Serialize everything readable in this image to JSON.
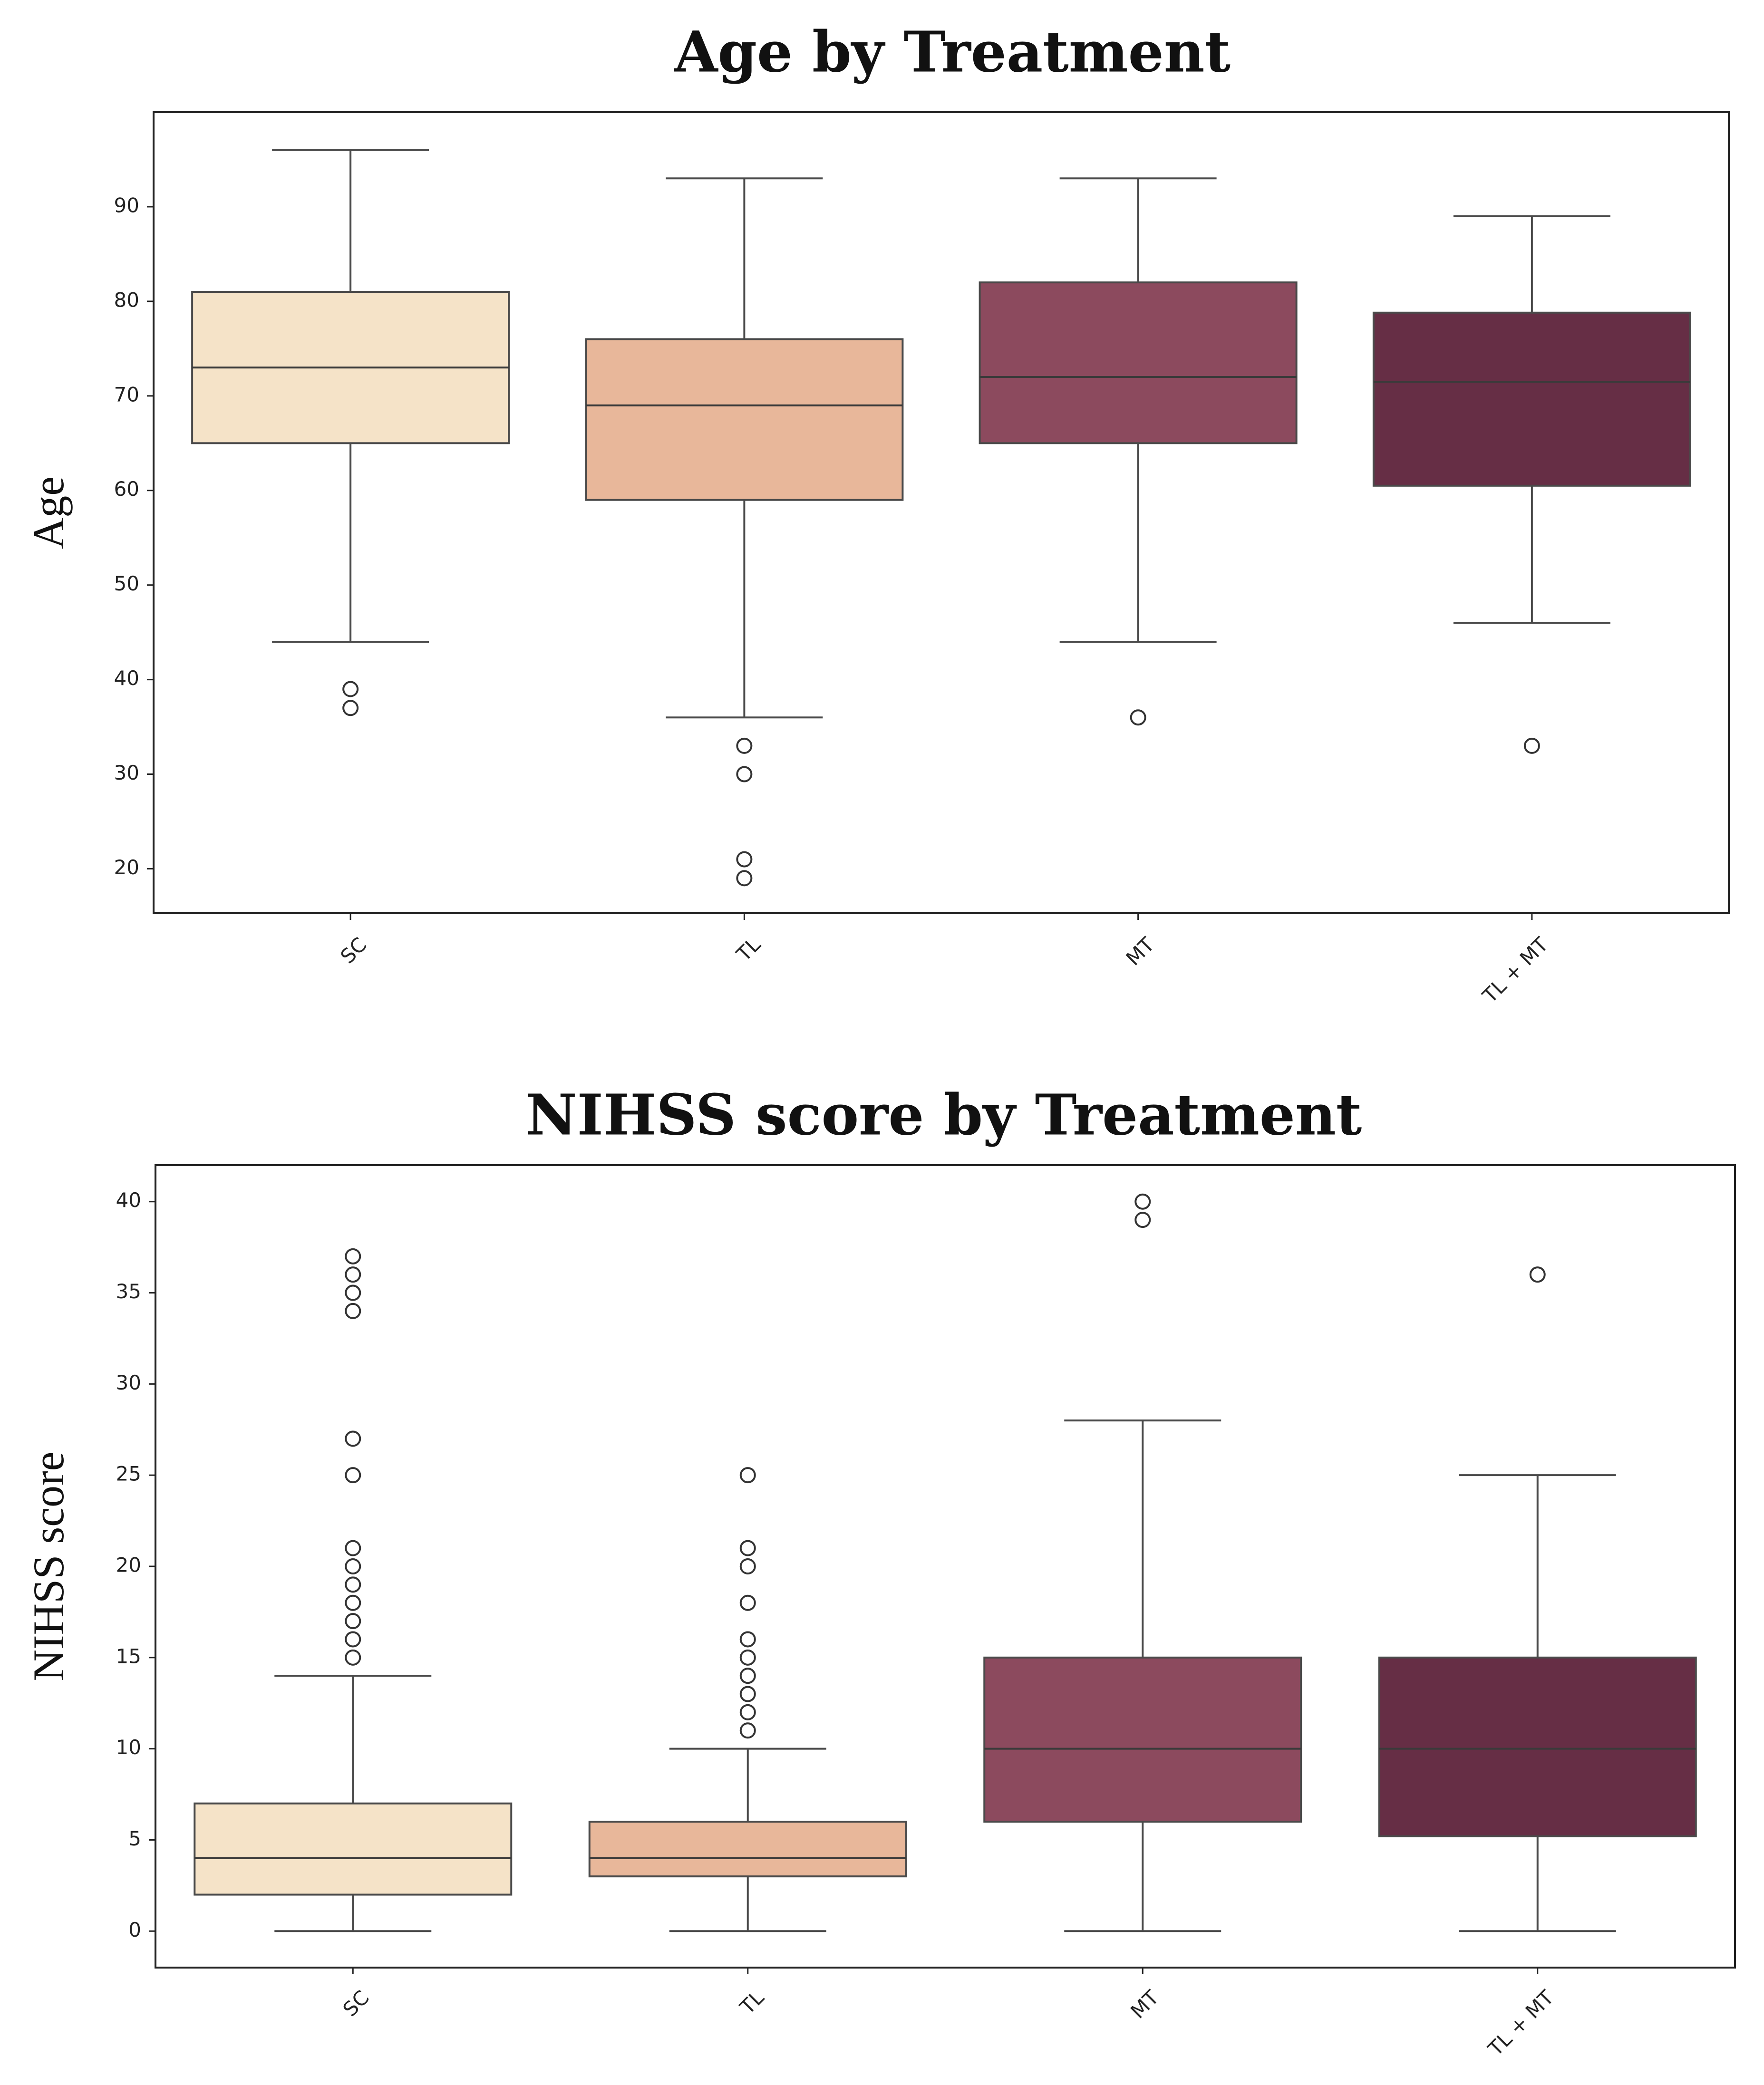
{
  "chart_data": [
    {
      "type": "box",
      "title": "Age by Treatment",
      "xlabel": "",
      "ylabel": "Age",
      "ylim": [
        15.3,
        100
      ],
      "yticks": [
        20,
        30,
        40,
        50,
        60,
        70,
        80,
        90
      ],
      "categories": [
        "SC",
        "TL",
        "MT",
        "TL + MT"
      ],
      "colors": [
        "#F5E3C8",
        "#E8B79A",
        "#8C4A5E",
        "#662E45"
      ],
      "boxes": [
        {
          "whisker_low": 44,
          "q1": 65,
          "median": 73,
          "q3": 81,
          "whisker_high": 96,
          "outliers": [
            39,
            37
          ]
        },
        {
          "whisker_low": 36,
          "q1": 59,
          "median": 69,
          "q3": 76,
          "whisker_high": 93,
          "outliers": [
            33,
            30,
            21,
            19
          ]
        },
        {
          "whisker_low": 44,
          "q1": 65,
          "median": 72,
          "q3": 82,
          "whisker_high": 93,
          "outliers": [
            36
          ]
        },
        {
          "whisker_low": 46,
          "q1": 60.5,
          "median": 71.5,
          "q3": 78.8,
          "whisker_high": 89,
          "outliers": [
            33
          ]
        }
      ]
    },
    {
      "type": "box",
      "title": "NIHSS score by Treatment",
      "xlabel": "",
      "ylabel": "NIHSS score",
      "ylim": [
        -2,
        42
      ],
      "yticks": [
        0,
        5,
        10,
        15,
        20,
        25,
        30,
        35,
        40
      ],
      "categories": [
        "SC",
        "TL",
        "MT",
        "TL + MT"
      ],
      "colors": [
        "#F5E3C8",
        "#E8B79A",
        "#8C4A5E",
        "#662E45"
      ],
      "boxes": [
        {
          "whisker_low": 0,
          "q1": 2,
          "median": 4,
          "q3": 7,
          "whisker_high": 14,
          "outliers": [
            15,
            16,
            17,
            18,
            19,
            20,
            21,
            25,
            27,
            34,
            35,
            36,
            37
          ]
        },
        {
          "whisker_low": 0,
          "q1": 3,
          "median": 4,
          "q3": 6,
          "whisker_high": 10,
          "outliers": [
            11,
            12,
            13,
            14,
            15,
            16,
            18,
            20,
            21,
            25
          ]
        },
        {
          "whisker_low": 0,
          "q1": 6,
          "median": 10,
          "q3": 15,
          "whisker_high": 28,
          "outliers": [
            39,
            40
          ]
        },
        {
          "whisker_low": 0,
          "q1": 5.2,
          "median": 10,
          "q3": 15,
          "whisker_high": 25,
          "outliers": [
            36
          ]
        }
      ]
    }
  ]
}
